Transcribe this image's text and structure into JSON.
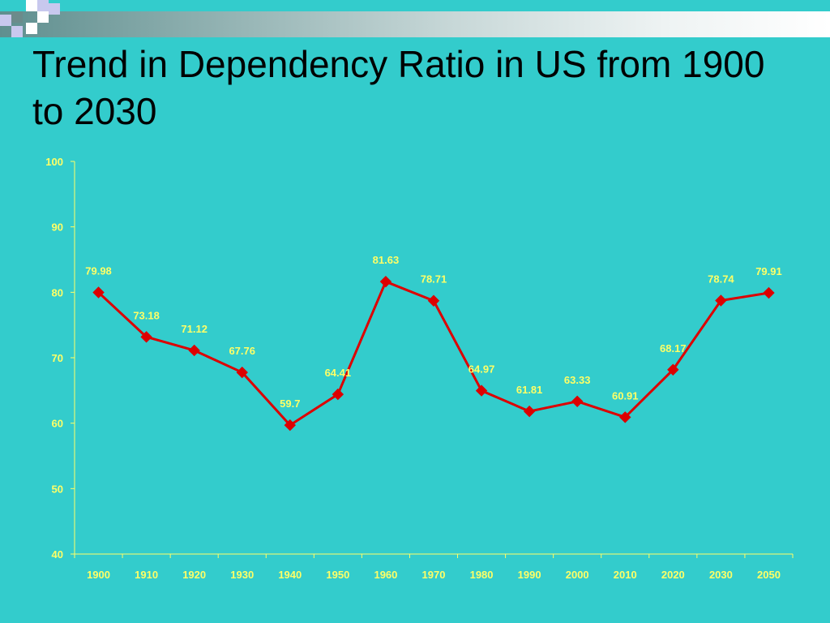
{
  "slide": {
    "title": "Trend in Dependency Ratio in US from 1900 to 2030"
  },
  "colors": {
    "background": "#33cccc",
    "line": "#dd0000",
    "text_labels": "#ffff66",
    "axis": "#ffff66"
  },
  "chart_data": {
    "type": "line",
    "title": "",
    "xlabel": "",
    "ylabel": "",
    "categories": [
      "1900",
      "1910",
      "1920",
      "1930",
      "1940",
      "1950",
      "1960",
      "1970",
      "1980",
      "1990",
      "2000",
      "2010",
      "2020",
      "2030",
      "2050"
    ],
    "series": [
      {
        "values": [
          79.98,
          73.18,
          71.12,
          67.76,
          59.7,
          64.41,
          81.63,
          78.71,
          64.97,
          61.81,
          63.33,
          60.91,
          68.17,
          78.74,
          79.91
        ],
        "data_labels": [
          "79.98",
          "73.18",
          "71.12",
          "67.76",
          "59.7",
          "64.41",
          "81.63",
          "78.71",
          "64.97",
          "61.81",
          "63.33",
          "60.91",
          "68.17",
          "78.74",
          "79.91"
        ],
        "marker": "diamond",
        "color": "#dd0000"
      }
    ],
    "ylim": [
      40,
      100
    ],
    "yticks": [
      40,
      50,
      60,
      70,
      80,
      90,
      100
    ],
    "ytick_labels": [
      "40",
      "50",
      "60",
      "70",
      "80",
      "90",
      "100"
    ],
    "grid": false,
    "legend": "none"
  }
}
